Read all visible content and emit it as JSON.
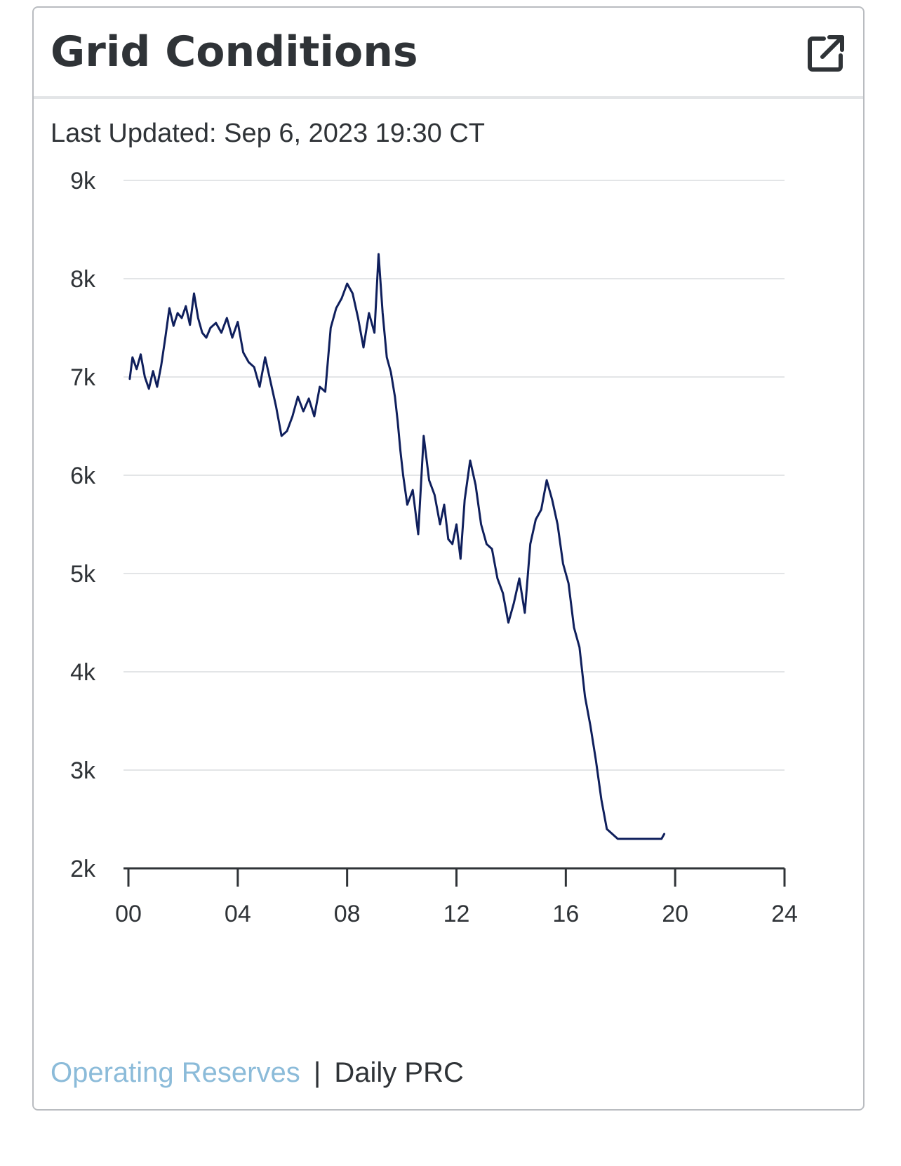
{
  "card": {
    "title": "Grid Conditions",
    "external_link_icon": "external-link-icon"
  },
  "updated": {
    "label": "Last Updated:",
    "timestamp": "Sep 6, 2023 19:30 CT"
  },
  "footer": {
    "link_label": "Operating Reserves",
    "separator": "|",
    "active_label": "Daily PRC"
  },
  "colors": {
    "line": "#0f1f5c",
    "grid": "#e3e5e7",
    "axis": "#2f3337",
    "link": "#8bbbd9"
  },
  "chart_data": {
    "type": "line",
    "title": "",
    "xlabel": "",
    "ylabel": "",
    "xlim": [
      0,
      24
    ],
    "ylim": [
      2000,
      9000
    ],
    "x_ticks": [
      0,
      4,
      8,
      12,
      16,
      20,
      24
    ],
    "x_tick_labels": [
      "00",
      "04",
      "08",
      "12",
      "16",
      "20",
      "24"
    ],
    "y_ticks": [
      2000,
      3000,
      4000,
      5000,
      6000,
      7000,
      8000,
      9000
    ],
    "y_tick_labels": [
      "2k",
      "3k",
      "4k",
      "5k",
      "6k",
      "7k",
      "8k",
      "9k"
    ],
    "grid": true,
    "series": [
      {
        "name": "Daily PRC",
        "x": [
          0.05,
          0.15,
          0.3,
          0.45,
          0.6,
          0.75,
          0.9,
          1.05,
          1.2,
          1.35,
          1.5,
          1.65,
          1.8,
          1.95,
          2.1,
          2.25,
          2.4,
          2.55,
          2.7,
          2.85,
          3.0,
          3.2,
          3.4,
          3.6,
          3.8,
          4.0,
          4.2,
          4.4,
          4.6,
          4.8,
          5.0,
          5.2,
          5.4,
          5.6,
          5.8,
          6.0,
          6.2,
          6.4,
          6.6,
          6.8,
          7.0,
          7.2,
          7.4,
          7.6,
          7.8,
          8.0,
          8.2,
          8.4,
          8.6,
          8.8,
          9.0,
          9.15,
          9.3,
          9.45,
          9.6,
          9.75,
          9.85,
          9.95,
          10.05,
          10.2,
          10.4,
          10.6,
          10.8,
          11.0,
          11.2,
          11.4,
          11.55,
          11.7,
          11.85,
          12.0,
          12.15,
          12.3,
          12.5,
          12.7,
          12.9,
          13.1,
          13.3,
          13.5,
          13.7,
          13.9,
          14.1,
          14.3,
          14.5,
          14.7,
          14.9,
          15.1,
          15.3,
          15.5,
          15.7,
          15.9,
          16.1,
          16.3,
          16.5,
          16.7,
          16.9,
          17.1,
          17.3,
          17.5,
          17.7,
          17.9,
          18.1,
          18.3,
          18.5,
          18.7,
          18.9,
          19.0,
          19.1,
          19.2,
          19.3,
          19.4,
          19.5,
          19.6
        ],
        "values": [
          6980,
          7200,
          7080,
          7230,
          7000,
          6880,
          7060,
          6900,
          7120,
          7400,
          7700,
          7520,
          7650,
          7600,
          7720,
          7530,
          7850,
          7600,
          7450,
          7400,
          7500,
          7550,
          7450,
          7600,
          7400,
          7560,
          7250,
          7150,
          7100,
          6900,
          7200,
          6950,
          6700,
          6400,
          6450,
          6600,
          6800,
          6650,
          6780,
          6600,
          6900,
          6850,
          7500,
          7700,
          7800,
          7950,
          7850,
          7600,
          7300,
          7650,
          7450,
          8250,
          7650,
          7200,
          7050,
          6800,
          6550,
          6250,
          6000,
          5700,
          5850,
          5400,
          6400,
          5950,
          5800,
          5500,
          5700,
          5350,
          5300,
          5500,
          5150,
          5750,
          6150,
          5900,
          5500,
          5300,
          5250,
          4950,
          4800,
          4500,
          4700,
          4950,
          4600,
          5300,
          5550,
          5650,
          5950,
          5750,
          5500,
          5100,
          4900,
          4450,
          4250,
          3750,
          3450,
          3100,
          2700,
          2400,
          2350,
          2300,
          2300,
          2300,
          2300,
          2300,
          2300,
          2300,
          2300,
          2300,
          2300,
          2300,
          2300,
          2350
        ]
      }
    ]
  }
}
